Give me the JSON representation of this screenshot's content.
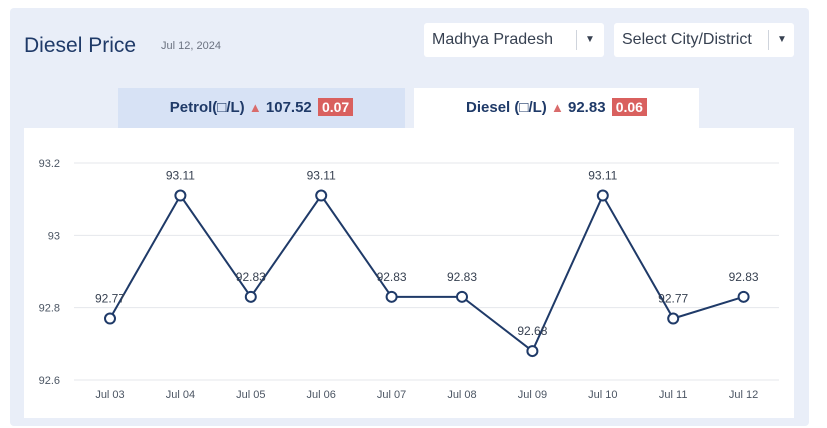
{
  "header": {
    "title": "Diesel Price",
    "date": "Jul 12, 2024"
  },
  "selects": {
    "state": "Madhya Pradesh",
    "city": "Select City/District",
    "caret_icon": "chevron-down-icon"
  },
  "tabs": {
    "petrol": {
      "label": "Petrol(□/L)",
      "price": "107.52",
      "change": "0.07",
      "trend_icon": "triangle-up-icon"
    },
    "diesel": {
      "label": "Diesel (□/L)",
      "price": "92.83",
      "change": "0.06",
      "trend_icon": "triangle-up-icon"
    }
  },
  "colors": {
    "line": "#1f3a68",
    "change_badge": "#d9605e",
    "trend_up": "#d96b6b"
  },
  "chart_data": {
    "type": "line",
    "categories": [
      "Jul 03",
      "Jul 04",
      "Jul 05",
      "Jul 06",
      "Jul 07",
      "Jul 08",
      "Jul 09",
      "Jul 10",
      "Jul 11",
      "Jul 12"
    ],
    "values": [
      92.77,
      93.11,
      92.83,
      93.11,
      92.83,
      92.83,
      92.68,
      93.11,
      92.77,
      92.83
    ],
    "data_labels": [
      "92.77",
      "93.11",
      "92.83",
      "93.11",
      "92.83",
      "92.83",
      "92.68",
      "93.11",
      "92.77",
      "92.83"
    ],
    "y_ticks": [
      "92.6",
      "92.8",
      "93",
      "93.2"
    ],
    "y_tick_values": [
      92.6,
      92.8,
      93.0,
      93.2
    ],
    "ylim": [
      92.6,
      93.2
    ],
    "grid": true,
    "title": "",
    "xlabel": "",
    "ylabel": ""
  }
}
